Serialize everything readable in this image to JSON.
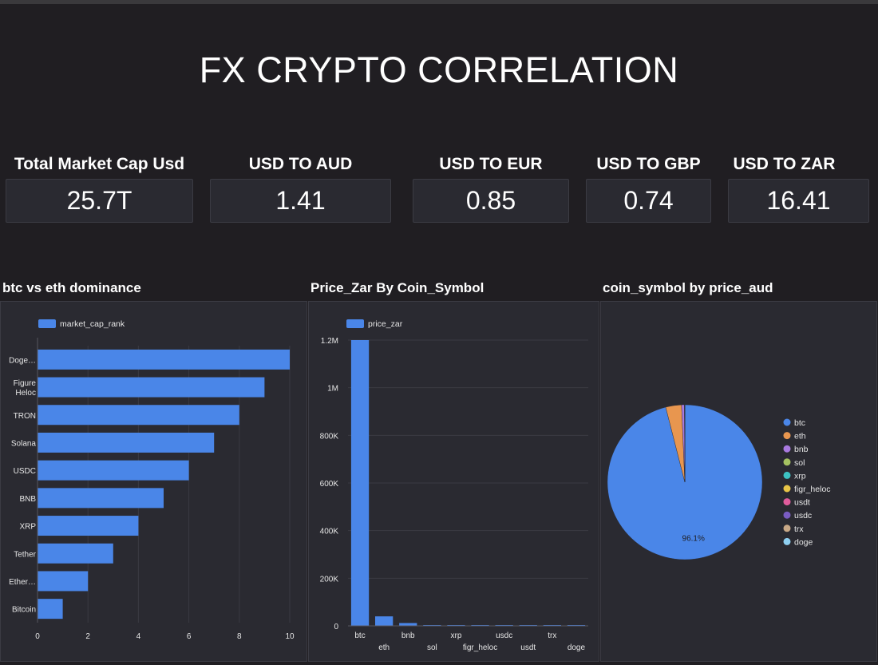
{
  "header": {
    "title": "FX CRYPTO CORRELATION"
  },
  "kpis": [
    {
      "label": "Total Market Cap Usd",
      "value": "25.7T"
    },
    {
      "label": "USD TO AUD",
      "value": "1.41"
    },
    {
      "label": "USD TO EUR",
      "value": "0.85"
    },
    {
      "label": "USD TO GBP",
      "value": "0.74"
    },
    {
      "label": "USD TO ZAR",
      "value": "16.41"
    }
  ],
  "panels": {
    "dominance": {
      "title": "btc vs eth dominance"
    },
    "price_zar": {
      "title": "Price_Zar By Coin_Symbol"
    },
    "price_aud": {
      "title": "coin_symbol by price_aud"
    }
  },
  "colors": {
    "bar": "#4a86e8",
    "pie": [
      "#4a86e8",
      "#e8964f",
      "#a97ae0",
      "#a5c261",
      "#3cc2c2",
      "#e8c547",
      "#e05c9c",
      "#7a5cc2",
      "#c8a886",
      "#8ecff0"
    ]
  },
  "chart_data": [
    {
      "type": "bar",
      "orientation": "horizontal",
      "title": "btc vs eth dominance",
      "categories": [
        "Doge…",
        "Figure Heloc",
        "TRON",
        "Solana",
        "USDC",
        "BNB",
        "XRP",
        "Tether",
        "Ether…",
        "Bitcoin"
      ],
      "category_lines": [
        [
          "Doge…"
        ],
        [
          "Figure",
          "Heloc"
        ],
        [
          "TRON"
        ],
        [
          "Solana"
        ],
        [
          "USDC"
        ],
        [
          "BNB"
        ],
        [
          "XRP"
        ],
        [
          "Tether"
        ],
        [
          "Ether…"
        ],
        [
          "Bitcoin"
        ]
      ],
      "series": [
        {
          "name": "market_cap_rank",
          "values": [
            10,
            9,
            8,
            7,
            6,
            5,
            4,
            3,
            2,
            1
          ]
        }
      ],
      "xlim": [
        0,
        10
      ],
      "xticks": [
        0,
        2,
        4,
        6,
        8,
        10
      ],
      "xlabel": "",
      "ylabel": "",
      "legend": "top-left",
      "grid": true
    },
    {
      "type": "bar",
      "orientation": "vertical",
      "title": "Price_Zar By Coin_Symbol",
      "categories": [
        "btc",
        "eth",
        "bnb",
        "sol",
        "xrp",
        "figr_heloc",
        "usdc",
        "usdt",
        "trx",
        "doge"
      ],
      "series": [
        {
          "name": "price_zar",
          "values": [
            1200000,
            40000,
            12000,
            3000,
            40,
            600,
            16,
            16,
            5,
            3
          ]
        }
      ],
      "ylim": [
        0,
        1200000
      ],
      "yticks": [
        0,
        200000,
        400000,
        600000,
        800000,
        1000000,
        1200000
      ],
      "ytick_labels": [
        "0",
        "200K",
        "400K",
        "600K",
        "800K",
        "1M",
        "1.2M"
      ],
      "xlabel": "",
      "ylabel": "",
      "legend": "top-left",
      "grid": true
    },
    {
      "type": "pie",
      "title": "coin_symbol by price_aud",
      "labels": [
        "btc",
        "eth",
        "bnb",
        "sol",
        "xrp",
        "figr_heloc",
        "usdt",
        "usdc",
        "trx",
        "doge"
      ],
      "values": [
        96.1,
        3.3,
        0.6,
        0.02,
        0.01,
        0.01,
        0.01,
        0.01,
        0.01,
        0.01
      ],
      "data_labels": [
        "96.1%"
      ],
      "legend": "right"
    }
  ]
}
